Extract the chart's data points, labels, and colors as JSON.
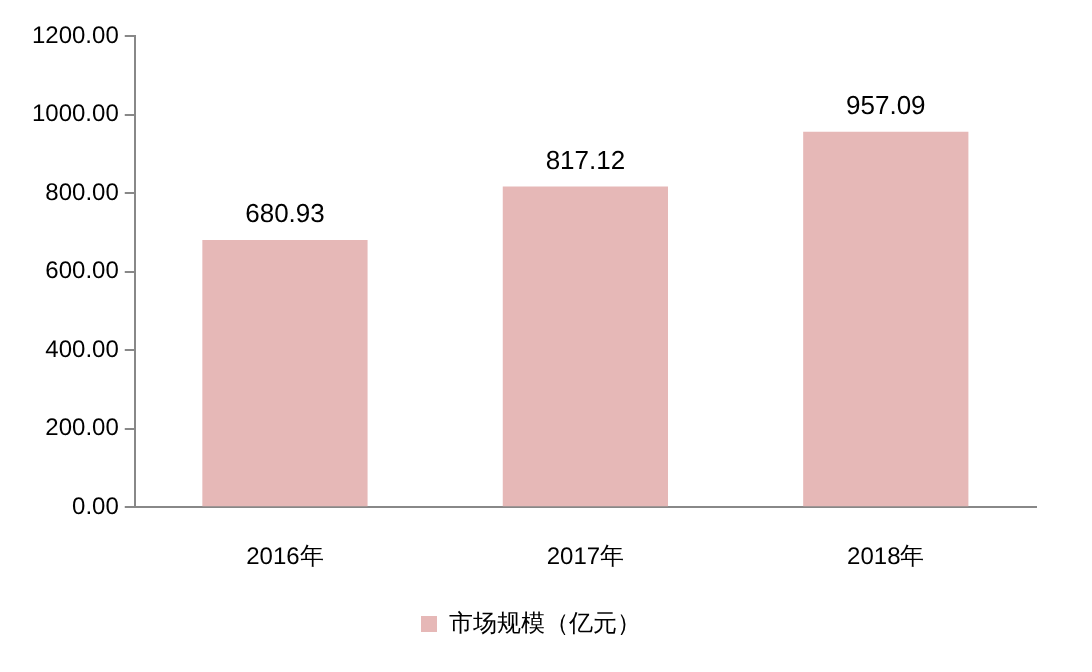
{
  "chart_data": {
    "type": "bar",
    "categories": [
      "2016年",
      "2017年",
      "2018年"
    ],
    "series": [
      {
        "name": "市场规模（亿元）",
        "color": "#e6b8b7",
        "values": [
          680.93,
          817.12,
          957.09
        ]
      }
    ],
    "ylim": [
      0,
      1200
    ],
    "yticks": [
      {
        "value": 0,
        "label": "0.00"
      },
      {
        "value": 200,
        "label": "200.00"
      },
      {
        "value": 400,
        "label": "400.00"
      },
      {
        "value": 600,
        "label": "600.00"
      },
      {
        "value": 800,
        "label": "800.00"
      },
      {
        "value": 1000,
        "label": "1000.00"
      },
      {
        "value": 1200,
        "label": "1200.00"
      }
    ],
    "data_labels": true,
    "grid": false,
    "legend": "bottom"
  }
}
